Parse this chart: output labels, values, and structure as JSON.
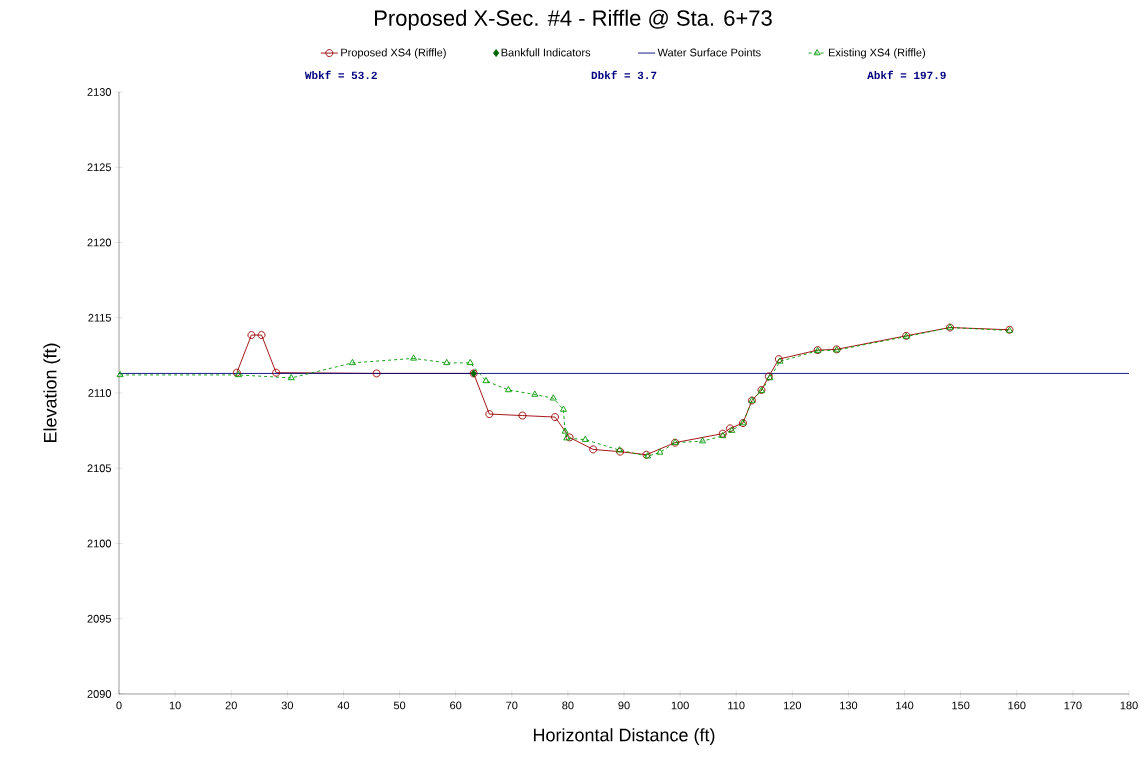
{
  "chart_data": {
    "type": "line",
    "title": "Proposed X-Sec. #4 - Riffle @ Sta. 6+73",
    "xlabel": "Horizontal Distance (ft)",
    "ylabel": "Elevation (ft)",
    "annotations": [
      "Wbkf = 53.2",
      "Dbkf = 3.7",
      "Abkf = 197.9"
    ],
    "xlim": [
      0,
      180
    ],
    "ylim": [
      2090,
      2130
    ],
    "xticks": [
      0,
      10,
      20,
      30,
      40,
      50,
      60,
      70,
      80,
      90,
      100,
      110,
      120,
      130,
      140,
      150,
      160,
      170,
      180
    ],
    "yticks": [
      2090,
      2095,
      2100,
      2105,
      2110,
      2115,
      2120,
      2125,
      2130
    ],
    "grid": false,
    "legend": "top",
    "series": [
      {
        "name": "Proposed XS4 (Riffle)",
        "color": "#990000",
        "marker": "circle",
        "line_style": "solid",
        "x": [
          21.0,
          23.6,
          25.4,
          28.0,
          45.9,
          63.2,
          66.0,
          71.9,
          77.7,
          80.3,
          84.5,
          89.3,
          94.0,
          99.1,
          107.6,
          108.9,
          111.2,
          112.8,
          114.5,
          115.8,
          117.6,
          124.5,
          127.9,
          140.3,
          148.1,
          158.7
        ],
        "values": [
          2111.35,
          2113.85,
          2113.85,
          2111.35,
          2111.3,
          2111.3,
          2108.6,
          2108.5,
          2108.4,
          2107.05,
          2106.25,
          2106.1,
          2105.9,
          2106.7,
          2107.3,
          2107.65,
          2108.0,
          2109.5,
          2110.2,
          2111.1,
          2112.25,
          2112.85,
          2112.9,
          2113.8,
          2114.35,
          2114.2
        ]
      },
      {
        "name": "Bankfull Indicators",
        "type": "scatter",
        "color": "#006600",
        "marker": "diamond",
        "x": [
          63.2
        ],
        "values": [
          2111.3
        ]
      },
      {
        "name": "Water Surface Points",
        "color": "#000080",
        "marker": "none",
        "line_style": "solid",
        "x": [
          0,
          180
        ],
        "values": [
          2111.3,
          2111.3
        ]
      },
      {
        "name": "Existing XS4 (Riffle)",
        "color": "#009900",
        "marker": "triangle",
        "line_style": "dashed",
        "x": [
          0.2,
          21.3,
          30.7,
          41.6,
          52.5,
          58.4,
          62.6,
          65.4,
          69.4,
          74.1,
          77.4,
          79.2,
          79.5,
          79.8,
          83.1,
          89.2,
          94.2,
          96.4,
          99.1,
          104.0,
          107.6,
          109.2,
          111.2,
          112.8,
          114.5,
          116.0,
          117.8,
          124.5,
          127.9,
          140.3,
          148.1,
          158.7
        ],
        "values": [
          2111.2,
          2111.2,
          2111.0,
          2112.0,
          2112.3,
          2112.0,
          2112.0,
          2110.8,
          2110.2,
          2109.9,
          2109.65,
          2108.9,
          2107.45,
          2107.0,
          2106.9,
          2106.2,
          2105.8,
          2106.05,
          2106.7,
          2106.8,
          2107.15,
          2107.5,
          2108.0,
          2109.5,
          2110.15,
          2111.0,
          2112.1,
          2112.8,
          2112.85,
          2113.75,
          2114.35,
          2114.15
        ]
      }
    ]
  }
}
